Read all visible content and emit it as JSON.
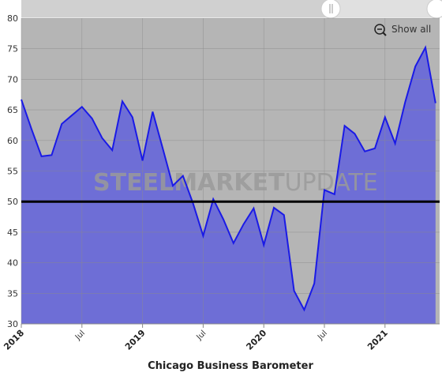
{
  "chart_data": {
    "type": "area",
    "title": "Chicago Business Barometer",
    "button": "Show all",
    "watermark": [
      "STEEL",
      "MARKET",
      "UPDATE"
    ],
    "categories": [
      "2018",
      null,
      null,
      null,
      null,
      null,
      "Jul",
      null,
      null,
      null,
      null,
      null,
      "2019",
      null,
      null,
      null,
      null,
      null,
      "Jul",
      null,
      null,
      null,
      null,
      null,
      "2020",
      null,
      null,
      null,
      null,
      null,
      "Jul",
      null,
      null,
      null,
      null,
      null,
      "2021",
      null,
      null,
      null,
      null,
      null
    ],
    "series": [
      {
        "name": "Chicago Business Barometer",
        "color": "#1a1ae6",
        "fill": "#6e6ed6",
        "values": [
          66.7,
          61.9,
          57.4,
          57.6,
          62.7,
          64.1,
          65.5,
          63.6,
          60.4,
          58.4,
          66.4,
          63.8,
          56.7,
          64.7,
          58.7,
          52.6,
          54.2,
          49.7,
          44.4,
          50.4,
          47.1,
          43.2,
          46.3,
          48.9,
          42.9,
          49.0,
          47.8,
          35.4,
          32.3,
          36.6,
          51.9,
          51.2,
          62.4,
          61.1,
          58.2,
          58.7,
          63.8,
          59.5,
          66.3,
          72.1,
          75.2,
          66.1
        ]
      }
    ],
    "reference_line": 50,
    "ylim": [
      30,
      80
    ],
    "yticks": [
      30,
      35,
      40,
      45,
      50,
      55,
      60,
      65,
      70,
      75,
      80
    ],
    "grid": true
  }
}
